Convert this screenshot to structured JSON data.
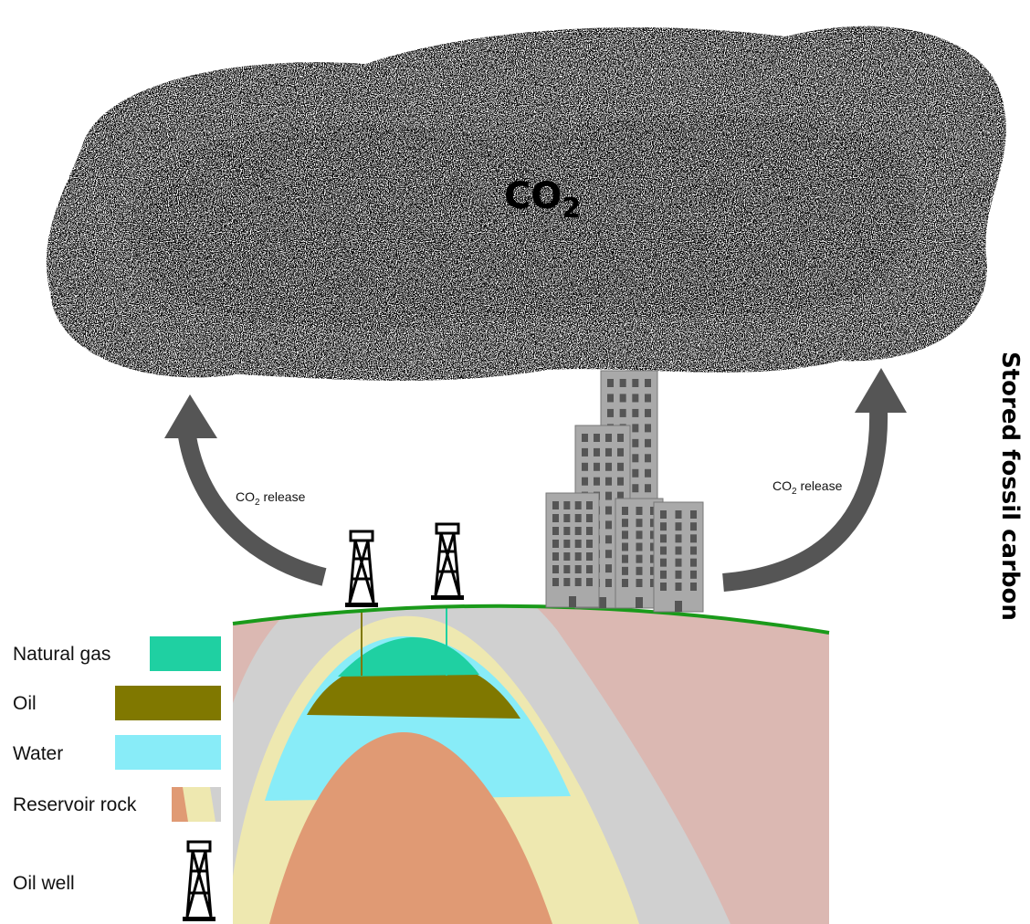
{
  "cloud": {
    "main": "CO",
    "sub": "2"
  },
  "releases": [
    {
      "main": "CO",
      "sub": "2",
      "rest": " release"
    },
    {
      "main": "CO",
      "sub": "2",
      "rest": " release"
    }
  ],
  "side_title": "Stored fossil carbon",
  "legend": [
    {
      "label": "Natural gas",
      "color": "#1fd0a2"
    },
    {
      "label": "Oil",
      "color": "#807800"
    },
    {
      "label": "Water",
      "color": "#88ecf8"
    },
    {
      "label": "Reservoir rock",
      "colors": [
        "#e09a74",
        "#eee8b0",
        "#d0d0d0"
      ]
    },
    {
      "label": "Oil well",
      "icon": "oil-derrick-icon"
    }
  ],
  "colors": {
    "ground_line": "#1a9a1a",
    "pink_rock": "#dbb8b2",
    "grey_rock": "#d0d0d0",
    "sand_rock": "#eee8b0",
    "orange_core": "#e09a74",
    "arrow": "#555555",
    "building": "#a9a9a9",
    "window": "#555555"
  }
}
